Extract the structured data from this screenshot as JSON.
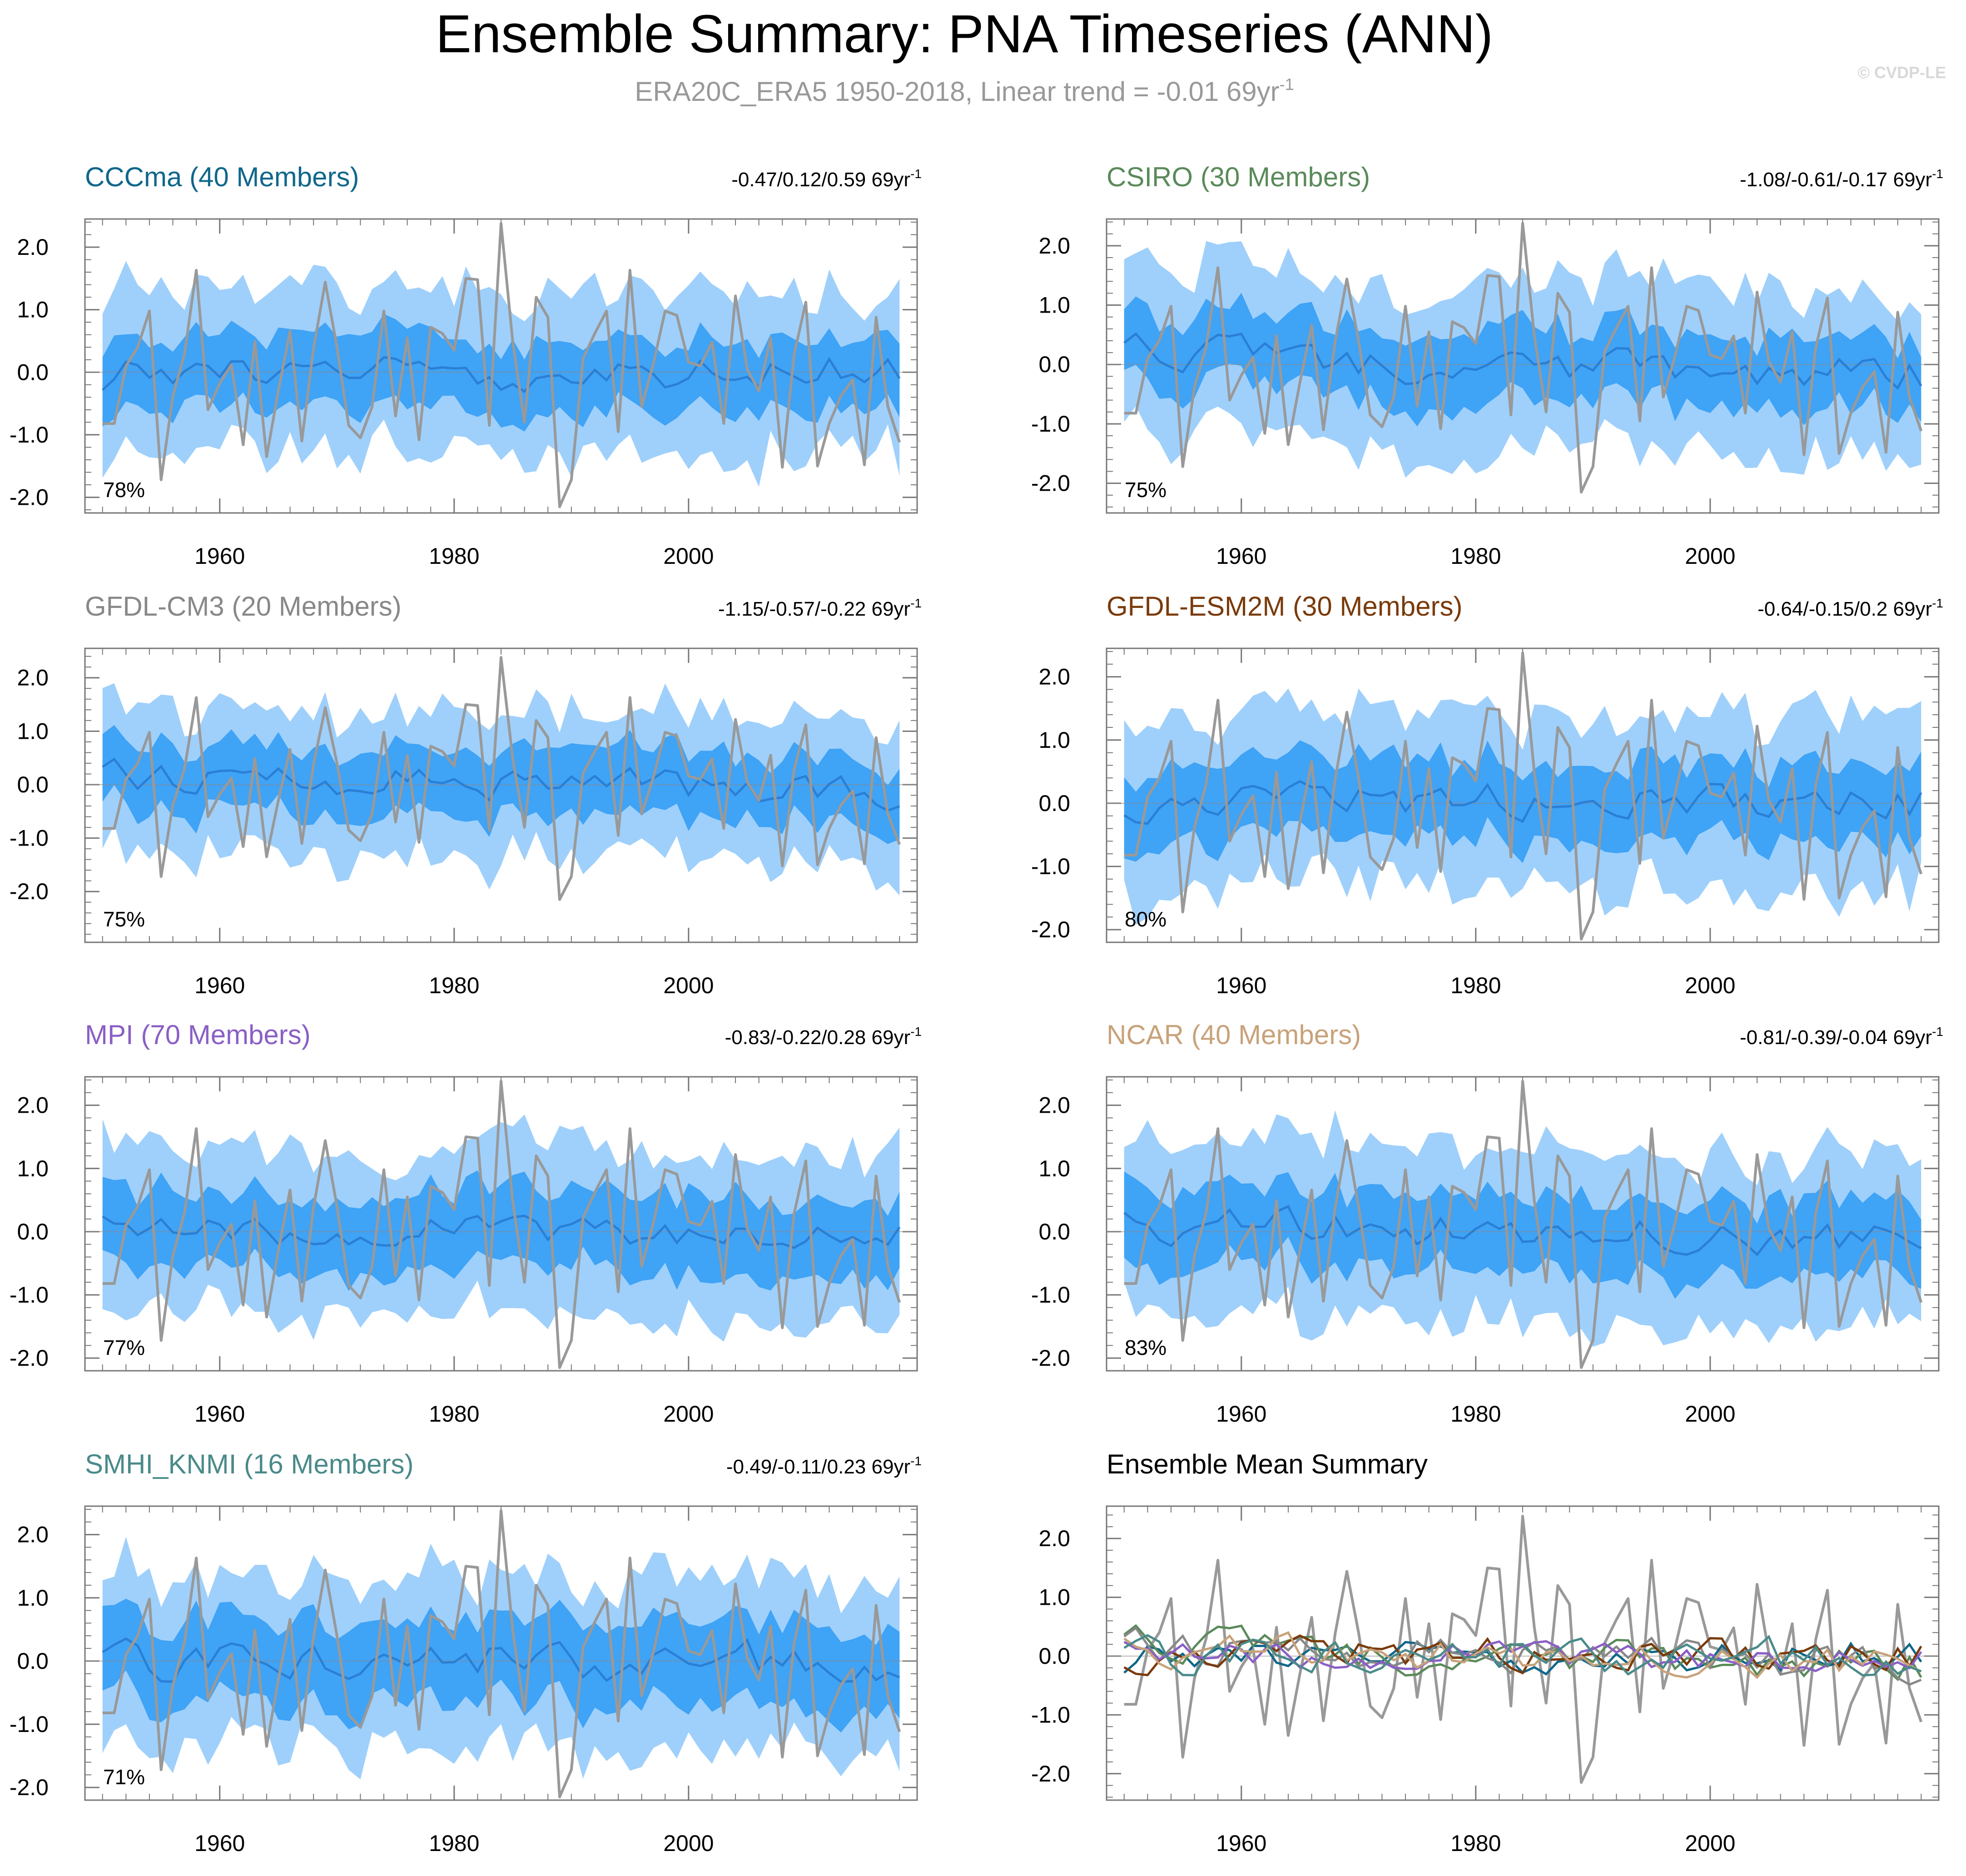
{
  "title": "Ensemble Summary: PNA Timeseries (ANN)",
  "subtitle": "ERA20C_ERA5 1950-2018, Linear trend = -0.01 69yr",
  "subtitle_superscript": "-1",
  "watermark": "© CVDP-LE",
  "colors": {
    "background": "#ffffff",
    "title": "#000000",
    "subtitle": "#999999",
    "watermark": "#d8d8d8",
    "outer_band": "#9fd0fb",
    "inner_band": "#3fa3f6",
    "ensemble_mean": "#2a7fd4",
    "observations": "#999999",
    "zero_line": "#8a8a8a",
    "axis": "#777777"
  },
  "chart_data": [
    {
      "type": "line",
      "panel": "CCCma",
      "title": "CCCma (40 Members)",
      "title_color": "#10678a",
      "trend_label": "-0.47/0.12/0.59 69yr",
      "trend_superscript": "-1",
      "percent_label": "78%",
      "x_start": 1950,
      "x_end": 2018,
      "xlim": [
        1948.5,
        2019.5
      ],
      "ylim": [
        -2.25,
        2.45
      ],
      "xticks": [
        1960,
        1980,
        2000
      ],
      "xtick_labels": [
        "1960",
        "1980",
        "2000"
      ],
      "yticks": [
        2.0,
        1.0,
        0.0,
        -1.0,
        -2.0
      ],
      "ytick_labels": [
        "2.0",
        "1.0",
        "0.0",
        "-1.0",
        "-2.0"
      ],
      "mean_amp": 0.45,
      "inner_w": 0.58,
      "outer_w": 1.3,
      "seed": 11,
      "trend_total": 0.12
    },
    {
      "type": "line",
      "panel": "CSIRO",
      "title": "CSIRO (30 Members)",
      "title_color": "#5a8a5a",
      "trend_label": "-1.08/-0.61/-0.17 69yr",
      "trend_superscript": "-1",
      "percent_label": "75%",
      "x_start": 1950,
      "x_end": 2018,
      "xlim": [
        1948.5,
        2019.5
      ],
      "ylim": [
        -2.5,
        2.45
      ],
      "xticks": [
        1960,
        1980,
        2000
      ],
      "xtick_labels": [
        "1960",
        "1980",
        "2000"
      ],
      "yticks": [
        2.0,
        1.0,
        0.0,
        -1.0,
        -2.0
      ],
      "ytick_labels": [
        "2.0",
        "1.0",
        "0.0",
        "-1.0",
        "-2.0"
      ],
      "mean_amp": 0.5,
      "inner_w": 0.6,
      "outer_w": 1.4,
      "seed": 23,
      "trend_total": -0.61
    },
    {
      "type": "line",
      "panel": "GFDL-CM3",
      "title": "GFDL-CM3 (20 Members)",
      "title_color": "#888888",
      "trend_label": "-1.15/-0.57/-0.22 69yr",
      "trend_superscript": "-1",
      "percent_label": "75%",
      "x_start": 1950,
      "x_end": 2018,
      "xlim": [
        1948.5,
        2019.5
      ],
      "ylim": [
        -2.95,
        2.55
      ],
      "xticks": [
        1960,
        1980,
        2000
      ],
      "xtick_labels": [
        "1960",
        "1980",
        "2000"
      ],
      "yticks": [
        2.0,
        1.0,
        0.0,
        -1.0,
        -2.0
      ],
      "ytick_labels": [
        "2.0",
        "1.0",
        "0.0",
        "-1.0",
        "-2.0"
      ],
      "mean_amp": 0.5,
      "inner_w": 0.62,
      "outer_w": 1.35,
      "seed": 37,
      "trend_total": -0.57
    },
    {
      "type": "line",
      "panel": "GFDL-ESM2M",
      "title": "GFDL-ESM2M (30 Members)",
      "title_color": "#7a3a0a",
      "trend_label": "-0.64/-0.15/0.2 69yr",
      "trend_superscript": "-1",
      "percent_label": "80%",
      "x_start": 1950,
      "x_end": 2018,
      "xlim": [
        1948.5,
        2019.5
      ],
      "ylim": [
        -2.2,
        2.45
      ],
      "xticks": [
        1960,
        1980,
        2000
      ],
      "xtick_labels": [
        "1960",
        "1980",
        "2000"
      ],
      "yticks": [
        2.0,
        1.0,
        0.0,
        -1.0,
        -2.0
      ],
      "ytick_labels": [
        "2.0",
        "1.0",
        "0.0",
        "-1.0",
        "-2.0"
      ],
      "mean_amp": 0.5,
      "inner_w": 0.6,
      "outer_w": 1.35,
      "seed": 41,
      "trend_total": -0.15
    },
    {
      "type": "line",
      "panel": "MPI",
      "title": "MPI (70 Members)",
      "title_color": "#8a5fc6",
      "trend_label": "-0.83/-0.22/0.28 69yr",
      "trend_superscript": "-1",
      "percent_label": "77%",
      "x_start": 1950,
      "x_end": 2018,
      "xlim": [
        1948.5,
        2019.5
      ],
      "ylim": [
        -2.2,
        2.45
      ],
      "xticks": [
        1960,
        1980,
        2000
      ],
      "xtick_labels": [
        "1960",
        "1980",
        "2000"
      ],
      "yticks": [
        2.0,
        1.0,
        0.0,
        -1.0,
        -2.0
      ],
      "ytick_labels": [
        "2.0",
        "1.0",
        "0.0",
        "-1.0",
        "-2.0"
      ],
      "mean_amp": 0.4,
      "inner_w": 0.6,
      "outer_w": 1.3,
      "seed": 53,
      "trend_total": -0.22
    },
    {
      "type": "line",
      "panel": "NCAR",
      "title": "NCAR (40 Members)",
      "title_color": "#c8a27a",
      "trend_label": "-0.81/-0.39/-0.04 69yr",
      "trend_superscript": "-1",
      "percent_label": "83%",
      "x_start": 1950,
      "x_end": 2018,
      "xlim": [
        1948.5,
        2019.5
      ],
      "ylim": [
        -2.2,
        2.45
      ],
      "xticks": [
        1960,
        1980,
        2000
      ],
      "xtick_labels": [
        "1960",
        "1980",
        "2000"
      ],
      "yticks": [
        2.0,
        1.0,
        0.0,
        -1.0,
        -2.0
      ],
      "ytick_labels": [
        "2.0",
        "1.0",
        "0.0",
        "-1.0",
        "-2.0"
      ],
      "mean_amp": 0.45,
      "inner_w": 0.6,
      "outer_w": 1.35,
      "seed": 67,
      "trend_total": -0.39
    },
    {
      "type": "line",
      "panel": "SMHI_KNMI",
      "title": "SMHI_KNMI (16 Members)",
      "title_color": "#4a8a8a",
      "trend_label": "-0.49/-0.11/0.23 69yr",
      "trend_superscript": "-1",
      "percent_label": "71%",
      "x_start": 1950,
      "x_end": 2018,
      "xlim": [
        1948.5,
        2019.5
      ],
      "ylim": [
        -2.2,
        2.45
      ],
      "xticks": [
        1960,
        1980,
        2000
      ],
      "xtick_labels": [
        "1960",
        "1980",
        "2000"
      ],
      "yticks": [
        2.0,
        1.0,
        0.0,
        -1.0,
        -2.0
      ],
      "ytick_labels": [
        "2.0",
        "1.0",
        "0.0",
        "-1.0",
        "-2.0"
      ],
      "mean_amp": 0.5,
      "inner_w": 0.65,
      "outer_w": 1.35,
      "seed": 79,
      "trend_total": -0.11
    },
    {
      "type": "line",
      "panel": "Ensemble Mean Summary",
      "title": "Ensemble Mean Summary",
      "title_color": "#000000",
      "x_start": 1950,
      "x_end": 2018,
      "xlim": [
        1948.5,
        2019.5
      ],
      "ylim": [
        -2.45,
        2.55
      ],
      "xticks": [
        1960,
        1980,
        2000
      ],
      "xtick_labels": [
        "1960",
        "1980",
        "2000"
      ],
      "yticks": [
        2.0,
        1.0,
        0.0,
        -1.0,
        -2.0
      ],
      "ytick_labels": [
        "2.0",
        "1.0",
        "0.0",
        "-1.0",
        "-2.0"
      ],
      "series_colors": [
        "#10678a",
        "#5a8a5a",
        "#888888",
        "#7a3a0a",
        "#8a5fc6",
        "#c8a27a",
        "#4a8a8a"
      ]
    }
  ],
  "observations": {
    "name": "ERA20C_ERA5",
    "x_start": 1950,
    "values": [
      -0.82,
      -0.82,
      0.1,
      0.4,
      0.98,
      -1.72,
      -0.38,
      0.3,
      1.63,
      -0.6,
      -0.18,
      0.12,
      -1.16,
      0.49,
      -1.35,
      -0.3,
      0.66,
      -1.1,
      0.38,
      1.44,
      0.4,
      -0.85,
      -1.05,
      -0.55,
      0.98,
      -0.7,
      0.55,
      -1.08,
      0.72,
      0.62,
      0.35,
      1.5,
      1.48,
      -0.85,
      2.38,
      0.48,
      -0.8,
      1.2,
      0.88,
      -2.15,
      -1.72,
      0.22,
      0.62,
      0.98,
      -0.95,
      1.63,
      -0.55,
      0.14,
      0.98,
      0.91,
      0.16,
      0.1,
      0.48,
      -0.82,
      1.22,
      0.05,
      -0.3,
      0.55,
      -1.52,
      0.28,
      1.12,
      -1.5,
      -0.82,
      -0.38,
      -0.12,
      -1.48,
      0.88,
      -0.55,
      -1.12
    ]
  }
}
